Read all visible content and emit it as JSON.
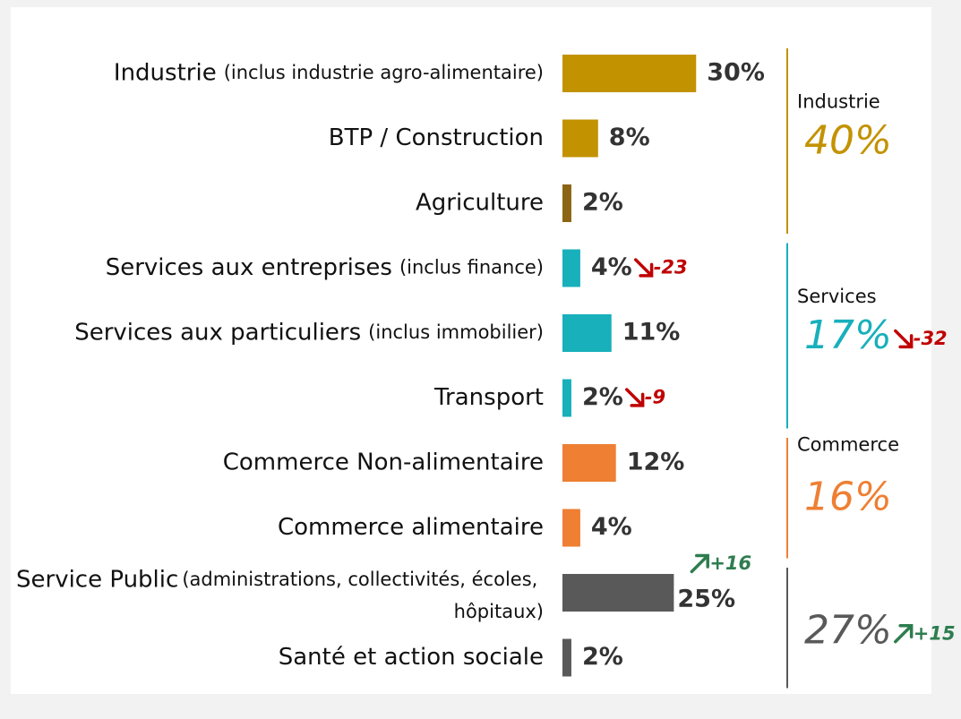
{
  "chart_data": {
    "type": "grouped-hbar",
    "xlim": [
      0,
      40
    ],
    "groups": [
      {
        "name": "Industrie",
        "total": 40,
        "total_label": "40%",
        "color": "#c39200",
        "categories": [
          {
            "name": "Industrie",
            "detail": "(inclus industrie agro-alimentaire)",
            "value": 30,
            "value_label": "30%",
            "color": "#c39200"
          },
          {
            "name": "BTP / Construction",
            "value": 8,
            "value_label": "8%",
            "color": "#c39200"
          },
          {
            "name": "Agriculture",
            "value": 2,
            "value_label": "2%",
            "color": "#8b6514"
          }
        ]
      },
      {
        "name": "Services",
        "total": 17,
        "total_label": "17%",
        "color": "#17b0bb",
        "change": -32,
        "categories": [
          {
            "name": "Services aux entreprises",
            "detail": "(inclus finance)",
            "value": 4,
            "value_label": "4%",
            "color": "#17b0bb",
            "change": -23
          },
          {
            "name": "Services aux particuliers",
            "detail": "(inclus immobilier)",
            "value": 11,
            "value_label": "11%",
            "color": "#17b0bb"
          },
          {
            "name": "Transport",
            "value": 2,
            "value_label": "2%",
            "color": "#17b0bb",
            "change": -9
          }
        ]
      },
      {
        "name": "Commerce",
        "total": 16,
        "total_label": "16%",
        "color": "#ee7f33",
        "categories": [
          {
            "name": "Commerce Non-alimentaire",
            "value": 12,
            "value_label": "12%",
            "color": "#ee7f33"
          },
          {
            "name": "Commerce alimentaire",
            "value": 4,
            "value_label": "4%",
            "color": "#ee7f33"
          }
        ]
      },
      {
        "name": null,
        "total": 27,
        "total_label": "27%",
        "color": "#595959",
        "change": 15,
        "change_label": "+15",
        "categories": [
          {
            "name": "Service Public",
            "detail": "(administrations, collectivités, écoles, hôpitaux)",
            "value": 25,
            "value_label": "25%",
            "color": "#595959",
            "change": 16,
            "change_label": "+16"
          },
          {
            "name": "Santé et action sociale",
            "value": 2,
            "value_label": "2%",
            "color": "#595959"
          }
        ]
      }
    ]
  }
}
